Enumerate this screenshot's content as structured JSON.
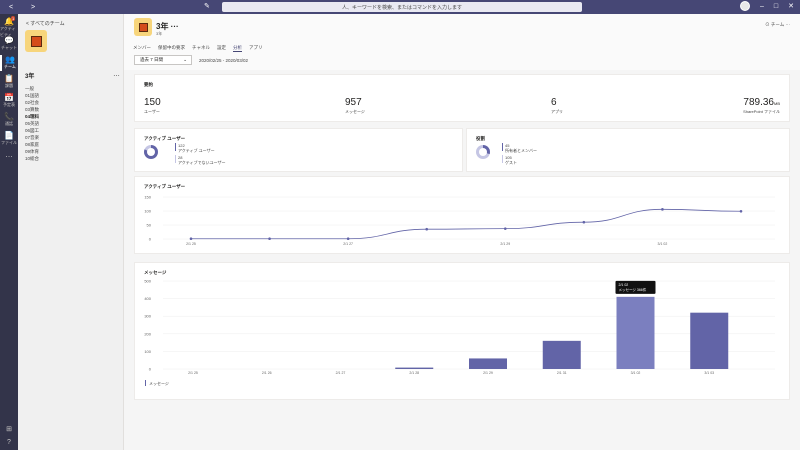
{
  "titlebar": {
    "search_placeholder": "人、キーワードを検索、またはコマンドを入力します",
    "back_icon": "<",
    "forward_icon": ">",
    "edit_icon": "✎"
  },
  "rail": {
    "items": [
      {
        "icon": "bell-icon",
        "glyph": "🔔",
        "label": "アクティビティ",
        "badge": "1"
      },
      {
        "icon": "chat-icon",
        "glyph": "💬",
        "label": "チャット"
      },
      {
        "icon": "teams-icon",
        "glyph": "👥",
        "label": "チーム"
      },
      {
        "icon": "assignment-icon",
        "glyph": "📋",
        "label": "課題"
      },
      {
        "icon": "calendar-icon",
        "glyph": "📅",
        "label": "予定表"
      },
      {
        "icon": "calls-icon",
        "glyph": "📞",
        "label": "通話"
      },
      {
        "icon": "files-icon",
        "glyph": "📄",
        "label": "ファイル"
      },
      {
        "icon": "more-icon",
        "glyph": "…",
        "label": ""
      }
    ],
    "bottom": [
      "⊞",
      "?"
    ]
  },
  "teampane": {
    "back": "< すべてのチーム",
    "team_name": "3年",
    "more": "…",
    "channels": [
      "一般",
      "01国語",
      "02社会",
      "03算数",
      "04理科",
      "05英語",
      "06図工",
      "07音楽",
      "08家庭",
      "09体育",
      "10総合"
    ],
    "active_channel": "04理科"
  },
  "header": {
    "title": "3年 ···",
    "subtitle": "3年",
    "team_link": "⊙ チーム ···",
    "tabs": [
      "メンバー",
      "保留中の要求",
      "チャネル",
      "設定",
      "分析",
      "アプリ"
    ],
    "active_tab": "分析",
    "filter": "過去 7 日間",
    "date_range": "2020/02/25 - 2020/03/02"
  },
  "summary": {
    "title": "要約",
    "stats": [
      {
        "value": "150",
        "label": "ユーザー"
      },
      {
        "value": "957",
        "label": "メッセージ"
      },
      {
        "value": "6",
        "label": "アプリ"
      },
      {
        "value": "789.36",
        "unit": "MB",
        "label": "SharePoint ファイル"
      }
    ]
  },
  "active_users_card": {
    "title": "アクティブ ユーザー",
    "active": {
      "value": "122",
      "label": "アクティブ ユーザー"
    },
    "inactive": {
      "value": "28",
      "label": "アクティブでないユーザー"
    }
  },
  "roles_card": {
    "title": "役割",
    "owners": {
      "value": "45",
      "label": "所有者とメンバー"
    },
    "guests": {
      "value": "105",
      "label": "ゲスト"
    }
  },
  "line_chart_title": "アクティブ ユーザー",
  "bar_chart_title": "メッセージ",
  "bar_legend": "メッセージ",
  "tooltip": {
    "date": "2/1 02",
    "label": "メッセージ 366件"
  },
  "colors": {
    "accent": "#6264a7",
    "bar_highlight": "#7b7fbf",
    "rail": "#33344a",
    "titlebar": "#464775"
  },
  "chart_data": [
    {
      "type": "line",
      "title": "アクティブ ユーザー",
      "x": [
        "2/1 25",
        "",
        "2/1 27",
        "",
        "2/1 29",
        "",
        "3/1 02",
        ""
      ],
      "tick_labels": [
        "2/1 25",
        "2/1 27",
        "2/1 29",
        "3/1 02"
      ],
      "series": [
        {
          "values": [
            1,
            1,
            1,
            35,
            37,
            60,
            106,
            99
          ]
        }
      ],
      "ylim": [
        0,
        150
      ],
      "yticks": [
        0,
        50,
        100,
        150
      ],
      "grid": true
    },
    {
      "type": "bar",
      "title": "メッセージ",
      "categories": [
        "2/1 25",
        "2/1 26",
        "2/1 27",
        "2/1 28",
        "2/1 29",
        "2/1 31",
        "3/1 02",
        "3/1 03"
      ],
      "series": [
        {
          "name": "メッセージ",
          "values": [
            0,
            0,
            0,
            8,
            60,
            160,
            410,
            320
          ]
        }
      ],
      "ylim": [
        0,
        500
      ],
      "yticks": [
        0,
        100,
        200,
        300,
        400,
        500
      ],
      "grid": true,
      "legend": "bottom-left"
    }
  ]
}
